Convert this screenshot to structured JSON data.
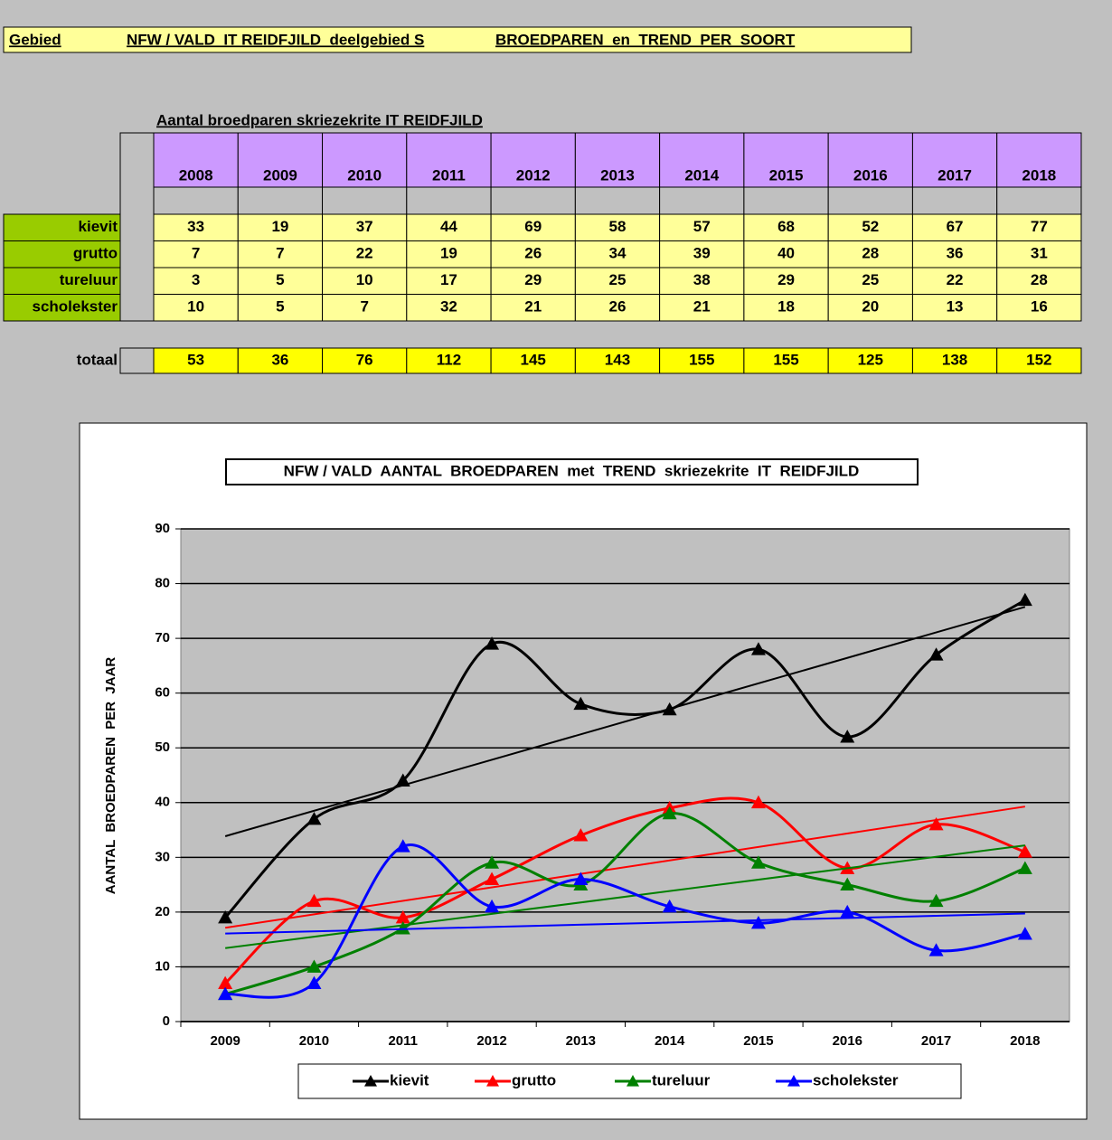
{
  "header": {
    "label": "Gebied",
    "area": "NFW / VALD  IT REIDFJILD  deelgebied S",
    "subject": "BROEDPAREN  en  TREND  PER  SOORT"
  },
  "table": {
    "title": "Aantal broedparen skriezekrite IT REIDFJILD",
    "years": [
      "2008",
      "2009",
      "2010",
      "2011",
      "2012",
      "2013",
      "2014",
      "2015",
      "2016",
      "2017",
      "2018"
    ],
    "rows": [
      {
        "label": "kievit",
        "values": [
          33,
          19,
          37,
          44,
          69,
          58,
          57,
          68,
          52,
          67,
          77
        ]
      },
      {
        "label": "grutto",
        "values": [
          7,
          7,
          22,
          19,
          26,
          34,
          39,
          40,
          28,
          36,
          31
        ]
      },
      {
        "label": "tureluur",
        "values": [
          3,
          5,
          10,
          17,
          29,
          25,
          38,
          29,
          25,
          22,
          28
        ]
      },
      {
        "label": "scholekster",
        "values": [
          10,
          5,
          7,
          32,
          21,
          26,
          21,
          18,
          20,
          13,
          16
        ]
      }
    ],
    "total": {
      "label": "totaal",
      "values": [
        53,
        36,
        76,
        112,
        145,
        143,
        155,
        155,
        125,
        138,
        152
      ]
    }
  },
  "chart_data": {
    "type": "line",
    "title": "NFW / VALD  AANTAL  BROEDPAREN  met  TREND  skriezekrite  IT  REIDFJILD",
    "ylabel": "AANTAL  BROEDPAREN  PER  JAAR",
    "categories": [
      "2009",
      "2010",
      "2011",
      "2012",
      "2013",
      "2014",
      "2015",
      "2016",
      "2017",
      "2018"
    ],
    "series": [
      {
        "name": "kievit",
        "color": "#000000",
        "values": [
          19,
          37,
          44,
          69,
          58,
          57,
          68,
          52,
          67,
          77
        ]
      },
      {
        "name": "grutto",
        "color": "#ff0000",
        "values": [
          7,
          22,
          19,
          26,
          34,
          39,
          40,
          28,
          36,
          31
        ]
      },
      {
        "name": "tureluur",
        "color": "#008000",
        "values": [
          5,
          10,
          17,
          29,
          25,
          38,
          29,
          25,
          22,
          28
        ]
      },
      {
        "name": "scholekster",
        "color": "#0000ff",
        "values": [
          5,
          7,
          32,
          21,
          26,
          21,
          18,
          20,
          13,
          16
        ]
      }
    ],
    "ylim": [
      0,
      90
    ],
    "yticks": [
      0,
      10,
      20,
      30,
      40,
      50,
      60,
      70,
      80,
      90
    ],
    "grid": true,
    "smooth": true,
    "trendline": true,
    "legend": "bottom"
  }
}
